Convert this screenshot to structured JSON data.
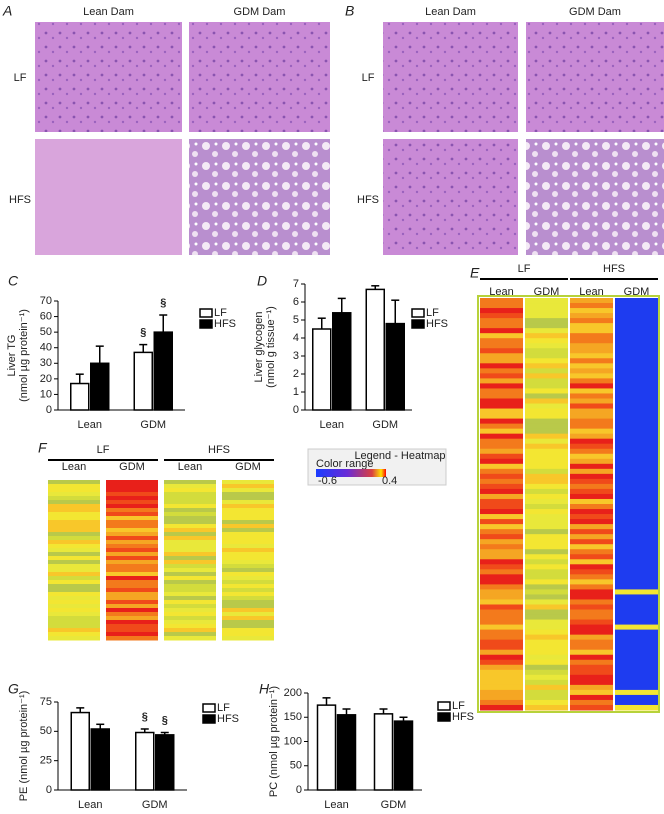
{
  "micrographs": [
    {
      "panel": "A",
      "columns": [
        "Lean Dam",
        "GDM Dam"
      ],
      "rows": [
        "LF",
        "HFS"
      ]
    },
    {
      "panel": "B",
      "columns": [
        "Lean Dam",
        "GDM Dam"
      ],
      "rows": [
        "LF",
        "HFS"
      ]
    }
  ],
  "heatmaps": [
    {
      "panel": "E",
      "groups": [
        "LF",
        "HFS"
      ],
      "columns": [
        "Lean",
        "GDM",
        "Lean",
        "GDM"
      ]
    },
    {
      "panel": "F",
      "groups": [
        "LF",
        "HFS"
      ],
      "columns": [
        "Lean",
        "GDM",
        "Lean",
        "GDM"
      ],
      "legend_title": "Legend - Heatmap",
      "color_range_label": "Color range",
      "range_labels": [
        "-0.6",
        "0.4"
      ]
    }
  ],
  "chart_data": [
    {
      "type": "bar",
      "panel": "C",
      "y_label": [
        "Liver TG",
        "(nmol µg protein⁻¹)"
      ],
      "categories": [
        "Lean",
        "GDM"
      ],
      "series": [
        {
          "name": "LF",
          "color": "#ffffff",
          "values": [
            17,
            37
          ],
          "errors": [
            6,
            5
          ],
          "annotations": [
            null,
            "§"
          ]
        },
        {
          "name": "HFS",
          "color": "#000000",
          "values": [
            30,
            50
          ],
          "errors": [
            11,
            11
          ],
          "annotations": [
            null,
            "§"
          ]
        }
      ],
      "ylim": [
        0,
        70
      ],
      "yticks": [
        0,
        10,
        20,
        30,
        40,
        50,
        60,
        70
      ]
    },
    {
      "type": "bar",
      "panel": "D",
      "y_label": [
        "Liver glycogen",
        "(nmol g tissue⁻¹)"
      ],
      "categories": [
        "Lean",
        "GDM"
      ],
      "series": [
        {
          "name": "LF",
          "color": "#ffffff",
          "values": [
            4.5,
            6.7
          ],
          "errors": [
            0.6,
            0.2
          ],
          "annotations": [
            null,
            null
          ]
        },
        {
          "name": "HFS",
          "color": "#000000",
          "values": [
            5.4,
            4.8
          ],
          "errors": [
            0.8,
            1.3
          ],
          "annotations": [
            null,
            null
          ]
        }
      ],
      "ylim": [
        0,
        7
      ],
      "yticks": [
        0,
        1,
        2,
        3,
        4,
        5,
        6,
        7
      ]
    },
    {
      "type": "bar",
      "panel": "G",
      "y_label": [
        "PE (nmol µg protein⁻¹)"
      ],
      "categories": [
        "Lean",
        "GDM"
      ],
      "series": [
        {
          "name": "LF",
          "color": "#ffffff",
          "values": [
            66,
            49
          ],
          "errors": [
            4,
            3
          ],
          "annotations": [
            null,
            "§"
          ]
        },
        {
          "name": "HFS",
          "color": "#000000",
          "values": [
            52,
            47
          ],
          "errors": [
            4,
            2
          ],
          "annotations": [
            null,
            "§"
          ]
        }
      ],
      "ylim": [
        0,
        75
      ],
      "yticks": [
        0,
        25,
        50,
        75
      ]
    },
    {
      "type": "bar",
      "panel": "H",
      "y_label": [
        "PC (nmol µg protein⁻¹)"
      ],
      "categories": [
        "Lean",
        "GDM"
      ],
      "series": [
        {
          "name": "LF",
          "color": "#ffffff",
          "values": [
            175,
            157
          ],
          "errors": [
            15,
            10
          ],
          "annotations": [
            null,
            null
          ]
        },
        {
          "name": "HFS",
          "color": "#000000",
          "values": [
            155,
            142
          ],
          "errors": [
            12,
            8
          ],
          "annotations": [
            null,
            null
          ]
        }
      ],
      "ylim": [
        0,
        200
      ],
      "yticks": [
        0,
        50,
        100,
        150,
        200
      ]
    }
  ]
}
